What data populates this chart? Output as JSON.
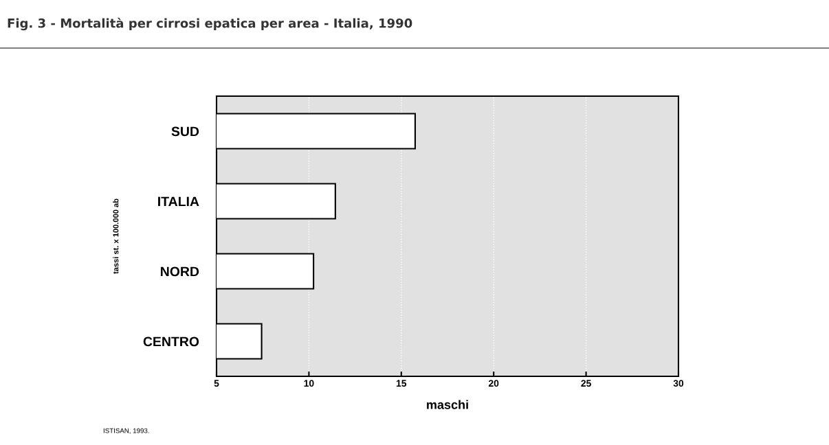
{
  "chart_data": {
    "type": "bar",
    "orientation": "horizontal",
    "title": "Fig. 3 - Mortalità per cirrosi epatica per area - Italia, 1990",
    "categories": [
      "SUD",
      "ITALIA",
      "NORD",
      "CENTRO"
    ],
    "values": [
      15.75,
      11.43,
      10.25,
      7.44
    ],
    "color": "#ffffff",
    "xlabel": "maschi",
    "ylabel": "tassi st. x 100.000 ab",
    "xlim": [
      5,
      30
    ],
    "xticks": [
      5,
      10,
      15,
      20,
      25,
      30
    ],
    "grid": "x",
    "annotations": [
      "ISTISAN, 1993."
    ]
  }
}
